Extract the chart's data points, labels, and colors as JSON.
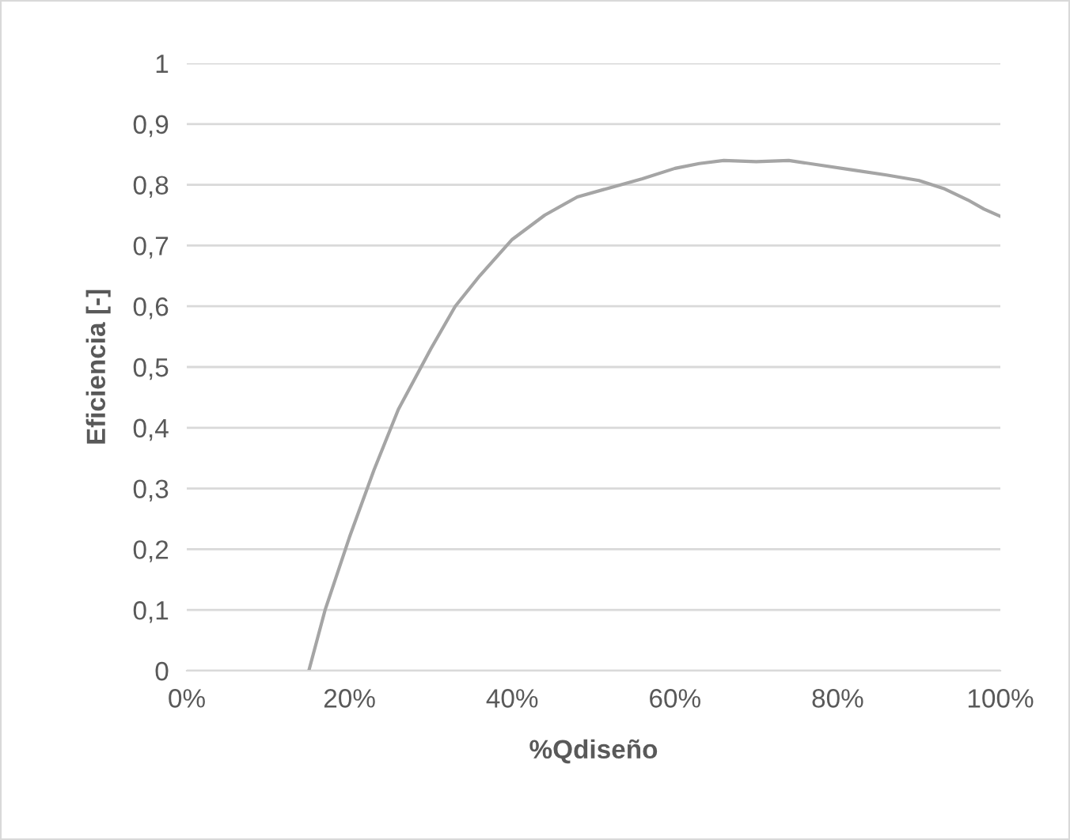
{
  "chart_data": {
    "type": "line",
    "xlabel": "%Qdiseño",
    "ylabel": "Eficiencia [-]",
    "series": [
      {
        "color": "#a5a5a5",
        "x": [
          15,
          17,
          20,
          23,
          26,
          30,
          33,
          36,
          40,
          44,
          48,
          52,
          56,
          60,
          63,
          66,
          70,
          74,
          78,
          82,
          86,
          90,
          93,
          96,
          98,
          100
        ],
        "values": [
          0,
          0.1,
          0.22,
          0.33,
          0.43,
          0.53,
          0.6,
          0.65,
          0.71,
          0.75,
          0.78,
          0.795,
          0.81,
          0.827,
          0.835,
          0.84,
          0.838,
          0.84,
          0.832,
          0.824,
          0.816,
          0.807,
          0.794,
          0.775,
          0.76,
          0.748
        ]
      }
    ],
    "xlim": [
      0,
      100
    ],
    "xticks": [
      {
        "value": 0,
        "label": "0%"
      },
      {
        "value": 20,
        "label": "20%"
      },
      {
        "value": 40,
        "label": "40%"
      },
      {
        "value": 60,
        "label": "60%"
      },
      {
        "value": 80,
        "label": "80%"
      },
      {
        "value": 100,
        "label": "100%"
      }
    ],
    "ylim": [
      0,
      1
    ],
    "yticks": [
      {
        "value": 0,
        "label": "0"
      },
      {
        "value": 0.1,
        "label": "0,1"
      },
      {
        "value": 0.2,
        "label": "0,2"
      },
      {
        "value": 0.3,
        "label": "0,3"
      },
      {
        "value": 0.4,
        "label": "0,4"
      },
      {
        "value": 0.5,
        "label": "0,5"
      },
      {
        "value": 0.6,
        "label": "0,6"
      },
      {
        "value": 0.7,
        "label": "0,7"
      },
      {
        "value": 0.8,
        "label": "0,8"
      },
      {
        "value": 0.9,
        "label": "0,9"
      },
      {
        "value": 1,
        "label": "1"
      }
    ],
    "grid": "y",
    "marker": "none",
    "line_style": "solid"
  }
}
